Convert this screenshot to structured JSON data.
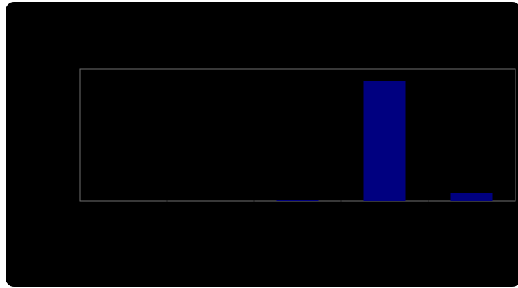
{
  "chart_data": {
    "type": "bar",
    "categories": [
      "",
      "",
      "",
      "",
      ""
    ],
    "values": [
      0,
      0,
      1,
      95,
      6
    ],
    "series": [
      {
        "values": [
          0,
          0,
          1,
          95,
          6
        ]
      }
    ],
    "bar_color": "#000080",
    "background_color": "#000000",
    "frame_color": "#6f6f6f",
    "data_labels": [
      "",
      "",
      "",
      "",
      ""
    ],
    "title": "",
    "xlabel": "",
    "ylabel": "",
    "ylim": [
      0,
      105
    ],
    "grid": false,
    "legend": "none"
  }
}
